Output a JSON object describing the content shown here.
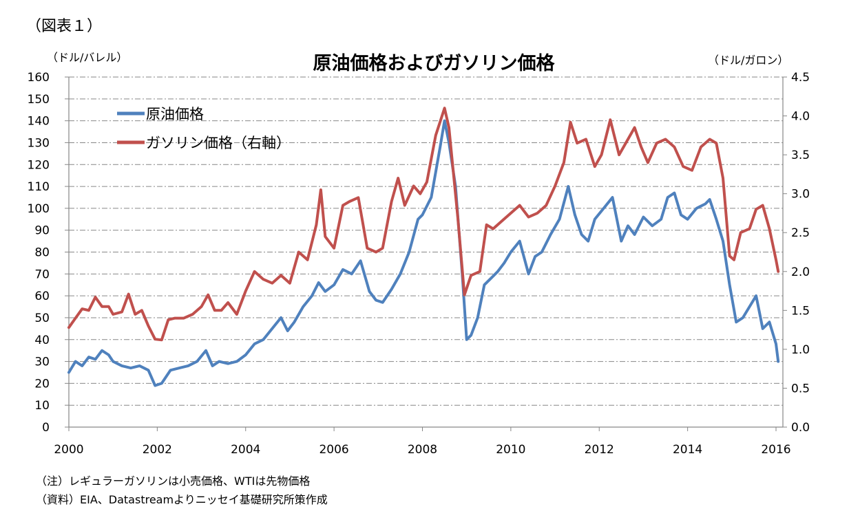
{
  "figure_label": "（図表１）",
  "notes": [
    "（注）レギュラーガソリンは小売価格、WTIは先物価格",
    "（資料）EIA、Datastreamよりニッセイ基礎研究所策作成"
  ],
  "chart_data": {
    "type": "line",
    "title": "原油価格およびガソリン価格",
    "ylabel": "（ドル/バレル）",
    "y2label": "（ドル/ガロン）",
    "xlabel": "",
    "xlim": [
      2000,
      2016.1
    ],
    "ylim": [
      0,
      160
    ],
    "y2lim": [
      0,
      4.5
    ],
    "grid": true,
    "legend_position": "top-left",
    "x_ticks": [
      "2000",
      "2002",
      "2004",
      "2006",
      "2008",
      "2010",
      "2012",
      "2014",
      "2016"
    ],
    "y_ticks": [
      "0",
      "10",
      "20",
      "30",
      "40",
      "50",
      "60",
      "70",
      "80",
      "90",
      "100",
      "110",
      "120",
      "130",
      "140",
      "150",
      "160"
    ],
    "y2_ticks": [
      "0.0",
      "0.5",
      "1.0",
      "1.5",
      "2.0",
      "2.5",
      "3.0",
      "3.5",
      "4.0",
      "4.5"
    ],
    "series": [
      {
        "name": "原油価格",
        "axis": "left",
        "color": "#4f81bd",
        "x": [
          2000.0,
          2000.15,
          2000.3,
          2000.45,
          2000.6,
          2000.75,
          2000.9,
          2001.0,
          2001.2,
          2001.4,
          2001.6,
          2001.8,
          2001.95,
          2002.1,
          2002.3,
          2002.5,
          2002.7,
          2002.9,
          2003.1,
          2003.25,
          2003.4,
          2003.6,
          2003.8,
          2004.0,
          2004.2,
          2004.4,
          2004.6,
          2004.8,
          2004.95,
          2005.1,
          2005.3,
          2005.5,
          2005.65,
          2005.8,
          2006.0,
          2006.2,
          2006.4,
          2006.6,
          2006.8,
          2006.95,
          2007.1,
          2007.3,
          2007.5,
          2007.7,
          2007.9,
          2008.0,
          2008.2,
          2008.4,
          2008.5,
          2008.6,
          2008.75,
          2008.9,
          2009.0,
          2009.1,
          2009.25,
          2009.4,
          2009.55,
          2009.7,
          2009.85,
          2010.0,
          2010.2,
          2010.4,
          2010.55,
          2010.7,
          2010.9,
          2011.1,
          2011.3,
          2011.45,
          2011.6,
          2011.75,
          2011.9,
          2012.1,
          2012.3,
          2012.5,
          2012.65,
          2012.8,
          2013.0,
          2013.2,
          2013.4,
          2013.55,
          2013.7,
          2013.85,
          2014.0,
          2014.2,
          2014.4,
          2014.5,
          2014.65,
          2014.8,
          2014.95,
          2015.1,
          2015.25,
          2015.4,
          2015.55,
          2015.7,
          2015.85,
          2016.0,
          2016.05
        ],
        "values": [
          25,
          30,
          28,
          32,
          31,
          35,
          33,
          30,
          28,
          27,
          28,
          26,
          19,
          20,
          26,
          27,
          28,
          30,
          35,
          28,
          30,
          29,
          30,
          33,
          38,
          40,
          45,
          50,
          44,
          48,
          55,
          60,
          66,
          62,
          65,
          72,
          70,
          76,
          62,
          58,
          57,
          63,
          70,
          80,
          95,
          97,
          105,
          128,
          140,
          130,
          110,
          70,
          40,
          42,
          50,
          65,
          68,
          71,
          75,
          80,
          85,
          70,
          78,
          80,
          88,
          95,
          110,
          97,
          88,
          85,
          95,
          100,
          105,
          85,
          92,
          88,
          96,
          92,
          95,
          105,
          107,
          97,
          95,
          100,
          102,
          104,
          95,
          85,
          65,
          48,
          50,
          55,
          60,
          45,
          48,
          38,
          30
        ]
      },
      {
        "name": "ガソリン価格（右軸）",
        "axis": "right",
        "color": "#c0504d",
        "x": [
          2000.0,
          2000.15,
          2000.3,
          2000.45,
          2000.6,
          2000.75,
          2000.9,
          2001.0,
          2001.2,
          2001.35,
          2001.5,
          2001.65,
          2001.8,
          2001.95,
          2002.1,
          2002.25,
          2002.4,
          2002.6,
          2002.8,
          2003.0,
          2003.15,
          2003.3,
          2003.45,
          2003.6,
          2003.8,
          2004.0,
          2004.2,
          2004.4,
          2004.6,
          2004.8,
          2005.0,
          2005.2,
          2005.4,
          2005.6,
          2005.7,
          2005.8,
          2006.0,
          2006.2,
          2006.35,
          2006.55,
          2006.75,
          2006.95,
          2007.1,
          2007.3,
          2007.45,
          2007.6,
          2007.8,
          2007.95,
          2008.1,
          2008.3,
          2008.5,
          2008.6,
          2008.8,
          2008.95,
          2009.1,
          2009.3,
          2009.45,
          2009.6,
          2009.8,
          2010.0,
          2010.2,
          2010.4,
          2010.6,
          2010.8,
          2011.0,
          2011.2,
          2011.35,
          2011.5,
          2011.7,
          2011.9,
          2012.05,
          2012.25,
          2012.45,
          2012.6,
          2012.8,
          2012.95,
          2013.1,
          2013.3,
          2013.5,
          2013.7,
          2013.9,
          2014.1,
          2014.3,
          2014.5,
          2014.65,
          2014.8,
          2014.95,
          2015.05,
          2015.2,
          2015.4,
          2015.55,
          2015.7,
          2015.85,
          2016.0,
          2016.05
        ],
        "values": [
          1.28,
          1.4,
          1.52,
          1.5,
          1.67,
          1.55,
          1.55,
          1.45,
          1.48,
          1.71,
          1.45,
          1.5,
          1.3,
          1.13,
          1.12,
          1.38,
          1.4,
          1.4,
          1.45,
          1.55,
          1.7,
          1.5,
          1.5,
          1.6,
          1.45,
          1.75,
          2.0,
          1.9,
          1.85,
          1.95,
          1.85,
          2.25,
          2.15,
          2.6,
          3.05,
          2.45,
          2.3,
          2.85,
          2.9,
          2.95,
          2.3,
          2.25,
          2.3,
          2.9,
          3.2,
          2.85,
          3.1,
          3.0,
          3.15,
          3.75,
          4.1,
          3.85,
          2.7,
          1.7,
          1.95,
          2.0,
          2.6,
          2.55,
          2.65,
          2.75,
          2.85,
          2.7,
          2.75,
          2.85,
          3.1,
          3.4,
          3.92,
          3.65,
          3.7,
          3.35,
          3.5,
          3.95,
          3.5,
          3.65,
          3.85,
          3.6,
          3.4,
          3.65,
          3.7,
          3.6,
          3.35,
          3.3,
          3.6,
          3.7,
          3.65,
          3.2,
          2.2,
          2.15,
          2.5,
          2.55,
          2.8,
          2.85,
          2.55,
          2.15,
          2.0
        ]
      }
    ]
  }
}
